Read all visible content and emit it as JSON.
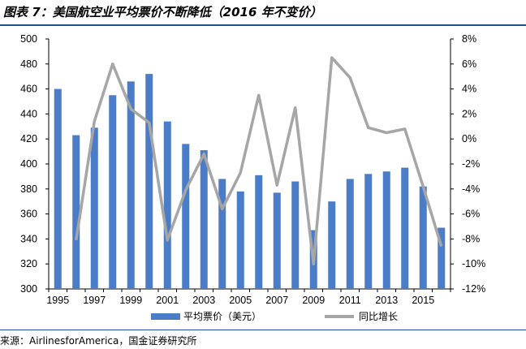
{
  "title": "图表 7：美国航空业平均票价不断降低（2016 年不变价）",
  "source": "来源：AirlinesforAmerica，国金证券研究所",
  "chart_data": {
    "type": "bar",
    "categories": [
      "1995",
      "1996",
      "1997",
      "1998",
      "1999",
      "2000",
      "2001",
      "2002",
      "2003",
      "2004",
      "2005",
      "2006",
      "2007",
      "2008",
      "2009",
      "2010",
      "2011",
      "2012",
      "2013",
      "2014",
      "2015",
      "2016"
    ],
    "x_tick_labels": [
      "1995",
      "1997",
      "1999",
      "2001",
      "2003",
      "2005",
      "2007",
      "2009",
      "2011",
      "2013",
      "2015"
    ],
    "series": [
      {
        "name": "平均票价（美元）",
        "type": "bar",
        "axis": "left",
        "color": "#4a7cc7",
        "values": [
          460,
          423,
          429,
          455,
          466,
          472,
          434,
          416,
          411,
          388,
          378,
          391,
          377,
          386,
          347,
          370,
          388,
          392,
          394,
          397,
          382,
          349
        ]
      },
      {
        "name": "同比增长",
        "type": "line",
        "axis": "right",
        "color": "#a6a6a6",
        "values": [
          null,
          -8.1,
          1.4,
          6.0,
          2.4,
          1.3,
          -8.1,
          -4.1,
          -1.2,
          -5.6,
          -2.7,
          3.5,
          -3.7,
          2.5,
          -10.0,
          6.5,
          4.9,
          0.9,
          0.5,
          0.8,
          -3.8,
          -8.6
        ]
      }
    ],
    "y_left": {
      "lim": [
        300,
        500
      ],
      "ticks": [
        300,
        320,
        340,
        360,
        380,
        400,
        420,
        440,
        460,
        480,
        500
      ]
    },
    "y_right": {
      "lim": [
        -12,
        8
      ],
      "ticks": [
        "-12%",
        "-10%",
        "-8%",
        "-6%",
        "-4%",
        "-2%",
        "0%",
        "2%",
        "4%",
        "6%",
        "8%"
      ]
    },
    "grid": false,
    "legend": "bottom-center"
  },
  "colors": {
    "title_rule": "#1f4e8c",
    "bar": "#4a7cc7",
    "line": "#a6a6a6"
  }
}
